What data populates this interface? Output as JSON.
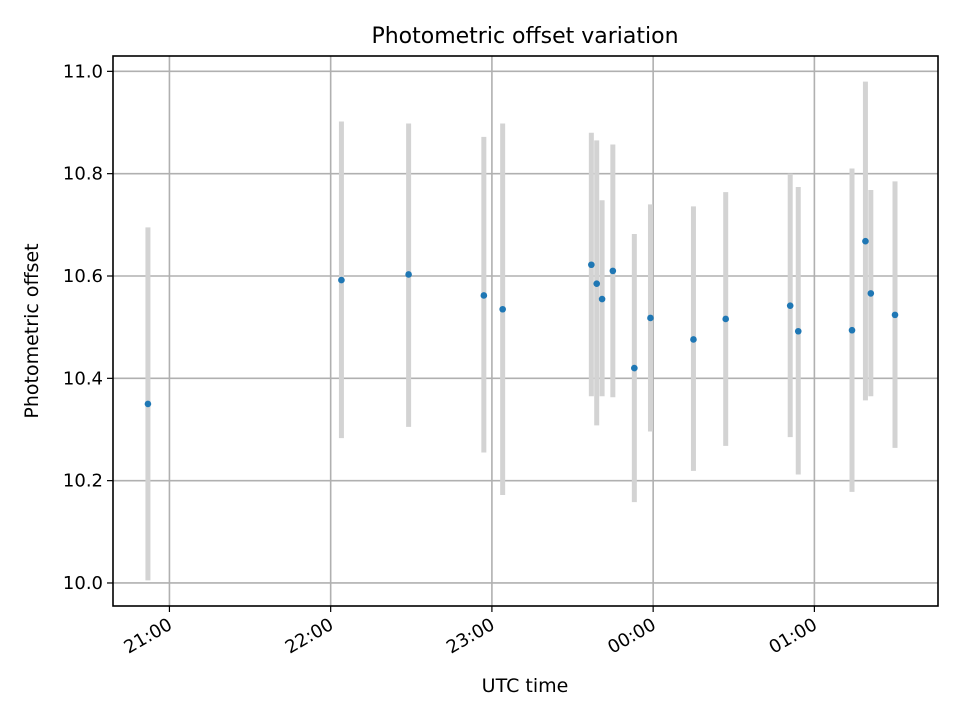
{
  "chart_data": {
    "type": "scatter",
    "title": "Photometric offset variation",
    "xlabel": "UTC time",
    "ylabel": "Photometric offset",
    "x_ticks": [
      "21:00",
      "22:00",
      "23:00",
      "00:00",
      "01:00"
    ],
    "y_ticks": [
      "10.0",
      "10.2",
      "10.4",
      "10.6",
      "10.8",
      "11.0"
    ],
    "xlim": [
      "20:39",
      "01:46"
    ],
    "ylim": [
      9.955,
      11.03
    ],
    "grid": true,
    "legend": "none",
    "colors": {
      "marker": "#1f77b4",
      "errorbar": "#d3d3d3",
      "grid": "#b0b0b0"
    },
    "points": [
      {
        "x": "20:52",
        "y": 10.35,
        "err_low": 10.005,
        "err_high": 10.695
      },
      {
        "x": "22:04",
        "y": 10.592,
        "err_low": 10.283,
        "err_high": 10.902
      },
      {
        "x": "22:29",
        "y": 10.603,
        "err_low": 10.305,
        "err_high": 10.898
      },
      {
        "x": "22:57",
        "y": 10.562,
        "err_low": 10.255,
        "err_high": 10.872
      },
      {
        "x": "23:04",
        "y": 10.535,
        "err_low": 10.172,
        "err_high": 10.898
      },
      {
        "x": "23:37",
        "y": 10.622,
        "err_low": 10.365,
        "err_high": 10.88
      },
      {
        "x": "23:39",
        "y": 10.585,
        "err_low": 10.308,
        "err_high": 10.865
      },
      {
        "x": "23:41",
        "y": 10.555,
        "err_low": 10.365,
        "err_high": 10.748
      },
      {
        "x": "23:45",
        "y": 10.61,
        "err_low": 10.363,
        "err_high": 10.857
      },
      {
        "x": "23:53",
        "y": 10.42,
        "err_low": 10.158,
        "err_high": 10.682
      },
      {
        "x": "23:59",
        "y": 10.518,
        "err_low": 10.296,
        "err_high": 10.74
      },
      {
        "x": "00:15",
        "y": 10.476,
        "err_low": 10.219,
        "err_high": 10.736
      },
      {
        "x": "00:27",
        "y": 10.516,
        "err_low": 10.268,
        "err_high": 10.764
      },
      {
        "x": "00:51",
        "y": 10.542,
        "err_low": 10.285,
        "err_high": 10.8
      },
      {
        "x": "00:54",
        "y": 10.492,
        "err_low": 10.212,
        "err_high": 10.774
      },
      {
        "x": "01:14",
        "y": 10.494,
        "err_low": 10.178,
        "err_high": 10.81
      },
      {
        "x": "01:19",
        "y": 10.668,
        "err_low": 10.357,
        "err_high": 10.98
      },
      {
        "x": "01:21",
        "y": 10.566,
        "err_low": 10.365,
        "err_high": 10.768
      },
      {
        "x": "01:30",
        "y": 10.524,
        "err_low": 10.264,
        "err_high": 10.785
      }
    ]
  }
}
